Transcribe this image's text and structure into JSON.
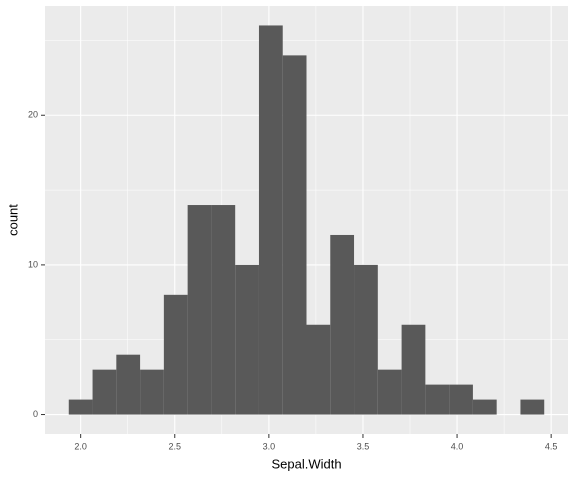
{
  "chart_data": {
    "type": "histogram",
    "x_label": "Sepal.Width",
    "y_label": "count",
    "bins": [
      1.9368,
      2.0632,
      2.1895,
      2.3158,
      2.4421,
      2.5684,
      2.6947,
      2.8211,
      2.9474,
      3.0737,
      3.2,
      3.3263,
      3.4526,
      3.5789,
      3.7053,
      3.8316,
      3.9579,
      4.0842,
      4.2105,
      4.3368,
      4.4632
    ],
    "values": [
      1,
      3,
      4,
      3,
      8,
      14,
      14,
      10,
      26,
      24,
      6,
      12,
      10,
      3,
      6,
      2,
      2,
      1,
      0,
      1
    ],
    "color": "#595959",
    "xlim": [
      1.8105,
      4.5895
    ],
    "xticks": [
      {
        "value": 2,
        "label": "2.0"
      },
      2.5,
      {
        "value": 3,
        "label": "3.0"
      },
      3.5,
      {
        "value": 4,
        "label": "4.0"
      },
      4.5
    ],
    "ylim": [
      -1.3,
      27.3
    ],
    "yticks": [
      0,
      10,
      20
    ],
    "grid": true
  }
}
